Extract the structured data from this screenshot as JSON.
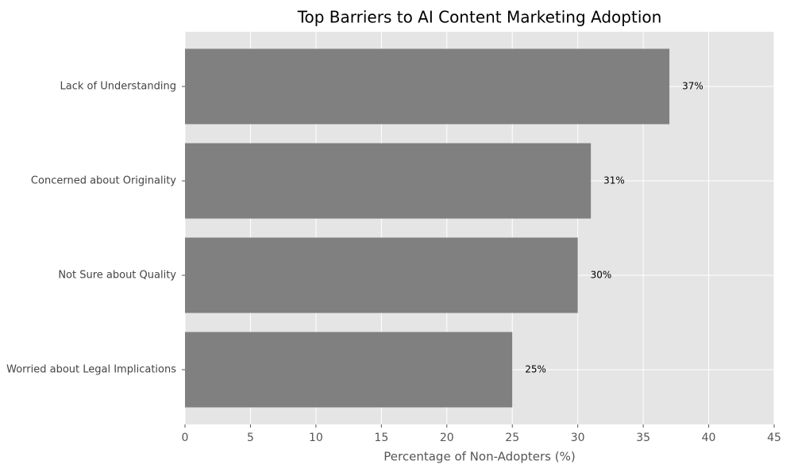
{
  "chart_data": {
    "type": "barh",
    "title": "Top Barriers to AI Content Marketing Adoption",
    "xlabel": "Percentage of Non-Adopters (%)",
    "categories": [
      "Lack of Understanding",
      "Concerned about Originality",
      "Not Sure about Quality",
      "Worried about Legal Implications"
    ],
    "values": [
      37,
      31,
      30,
      25
    ],
    "value_labels": [
      "37%",
      "31%",
      "30%",
      "25%"
    ],
    "color": "#808080",
    "xlim": [
      0,
      45
    ],
    "xticks": [
      0,
      5,
      10,
      15,
      20,
      25,
      30,
      35,
      40,
      45
    ],
    "grid": true
  }
}
